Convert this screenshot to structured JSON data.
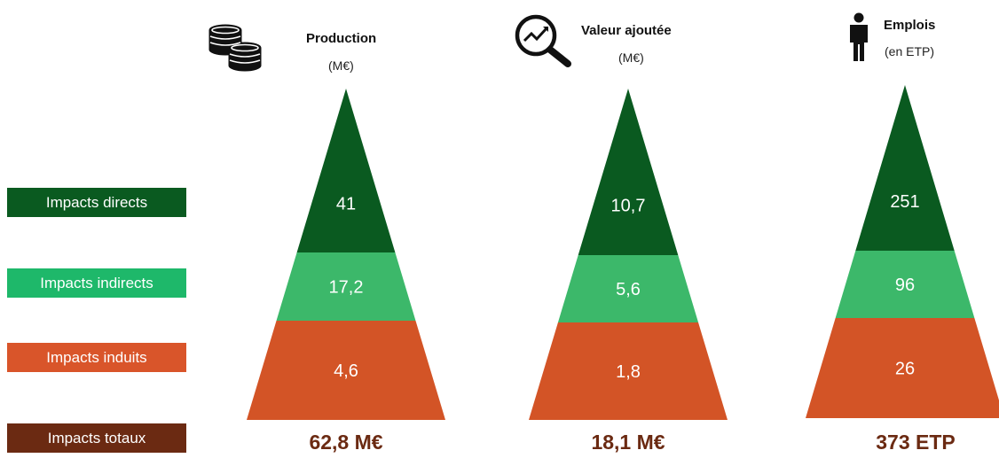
{
  "legend": [
    {
      "key": "direct",
      "label": "Impacts directs",
      "color": "#0a5a20"
    },
    {
      "key": "indirect",
      "label": "Impacts indirects",
      "color": "#1eb86a"
    },
    {
      "key": "induced",
      "label": "Impacts induits",
      "color": "#d9552a"
    },
    {
      "key": "total",
      "label": "Impacts totaux",
      "color": "#6b2a12"
    }
  ],
  "columns": [
    {
      "title": "Production",
      "unit": "(M€)",
      "icon": "coins-icon",
      "total": "62,8 M€"
    },
    {
      "title": "Valeur ajoutée",
      "unit": "(M€)",
      "icon": "magnifier-chart-icon",
      "total": "18,1 M€"
    },
    {
      "title": "Emplois",
      "unit": "(en ETP)",
      "icon": "person-icon",
      "total": "373 ETP"
    }
  ],
  "colors": {
    "direct": "#0a5a20",
    "indirect": "#3cb86a",
    "induced": "#d35426",
    "total_text": "#6b2a12"
  },
  "chart_data": {
    "type": "table",
    "categories": [
      "Production",
      "Valeur ajoutée",
      "Emplois"
    ],
    "series": [
      {
        "name": "Impacts directs",
        "values": [
          41,
          10.7,
          251
        ],
        "labels": [
          "41",
          "10,7",
          "251"
        ]
      },
      {
        "name": "Impacts indirects",
        "values": [
          17.2,
          5.6,
          96
        ],
        "labels": [
          "17,2",
          "5,6",
          "96"
        ]
      },
      {
        "name": "Impacts induits",
        "values": [
          4.6,
          1.8,
          26
        ],
        "labels": [
          "4,6",
          "1,8",
          "26"
        ]
      }
    ],
    "totals": [
      "62,8 M€",
      "18,1 M€",
      "373 ETP"
    ]
  }
}
